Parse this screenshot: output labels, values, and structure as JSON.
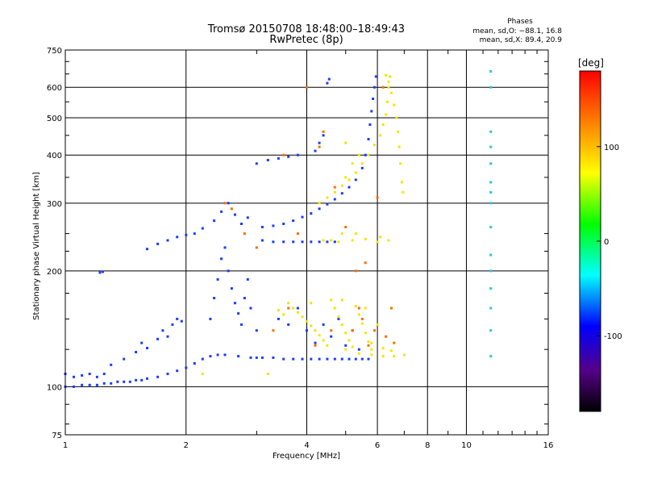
{
  "chart_data": {
    "type": "scatter",
    "title": "Tromsø 20150708 18:48:00–18:49:43",
    "subtitle": "RwPretec (8p)",
    "xlabel": "Frequency [MHz]",
    "ylabel": "Stationary phase Virtual Height [km]",
    "x_scale": "log",
    "y_scale": "log",
    "xlim": [
      1,
      16
    ],
    "ylim": [
      75,
      750
    ],
    "x_ticks": [
      1,
      2,
      4,
      6,
      8,
      10,
      16
    ],
    "y_ticks": [
      75,
      100,
      200,
      300,
      400,
      500,
      600,
      750
    ],
    "grid": true,
    "legend": {
      "title": "Phases",
      "lines": [
        "mean, sd,O: −88.1, 16.8",
        "mean, sd,X:  89.4, 20.9"
      ]
    },
    "colorbar": {
      "label": "[deg]",
      "range": [
        -180,
        180
      ],
      "ticks": [
        100,
        0,
        -100
      ]
    },
    "series": [
      {
        "values": [
          [
            1.0,
            100
          ],
          [
            1.05,
            100
          ],
          [
            1.1,
            101
          ],
          [
            1.15,
            101
          ],
          [
            1.2,
            101
          ],
          [
            1.25,
            102
          ],
          [
            1.3,
            102
          ],
          [
            1.35,
            103
          ],
          [
            1.4,
            103
          ],
          [
            1.45,
            103
          ],
          [
            1.5,
            104
          ],
          [
            1.55,
            104
          ],
          [
            1.6,
            105
          ],
          [
            1.7,
            106
          ],
          [
            1.8,
            108
          ],
          [
            1.9,
            110
          ],
          [
            2.0,
            112
          ],
          [
            2.1,
            115
          ],
          [
            2.2,
            118
          ],
          [
            2.3,
            120
          ],
          [
            2.4,
            121
          ],
          [
            2.5,
            121
          ],
          [
            2.7,
            120
          ],
          [
            2.9,
            119
          ],
          [
            3.0,
            119
          ],
          [
            3.1,
            119
          ],
          [
            3.3,
            119
          ],
          [
            3.5,
            118
          ],
          [
            3.7,
            118
          ],
          [
            3.9,
            118
          ],
          [
            4.1,
            118
          ],
          [
            4.3,
            118
          ],
          [
            4.5,
            118
          ],
          [
            4.7,
            118
          ],
          [
            4.9,
            118
          ],
          [
            5.1,
            118
          ],
          [
            5.3,
            118
          ],
          [
            5.5,
            118
          ],
          [
            5.7,
            118
          ],
          [
            1.0,
            108
          ],
          [
            1.05,
            106
          ],
          [
            1.1,
            107
          ],
          [
            1.15,
            108
          ],
          [
            1.2,
            106
          ],
          [
            1.25,
            108
          ],
          [
            1.3,
            114
          ],
          [
            1.4,
            118
          ],
          [
            1.5,
            123
          ],
          [
            1.55,
            130
          ],
          [
            1.6,
            126
          ],
          [
            1.7,
            133
          ],
          [
            1.75,
            140
          ],
          [
            1.8,
            135
          ],
          [
            1.85,
            145
          ],
          [
            1.9,
            150
          ],
          [
            1.95,
            148
          ],
          [
            1.22,
            198
          ],
          [
            1.24,
            199
          ],
          [
            1.6,
            228
          ],
          [
            1.7,
            235
          ],
          [
            1.8,
            240
          ],
          [
            1.9,
            245
          ],
          [
            2.0,
            248
          ],
          [
            2.1,
            250
          ],
          [
            2.2,
            258
          ],
          [
            2.3,
            150
          ],
          [
            2.35,
            170
          ],
          [
            2.4,
            190
          ],
          [
            2.45,
            215
          ],
          [
            2.5,
            230
          ],
          [
            2.55,
            200
          ],
          [
            2.6,
            180
          ],
          [
            2.65,
            165
          ],
          [
            2.7,
            155
          ],
          [
            2.75,
            145
          ],
          [
            2.8,
            170
          ],
          [
            2.85,
            190
          ],
          [
            2.9,
            160
          ],
          [
            3.0,
            140
          ],
          [
            2.35,
            270
          ],
          [
            2.45,
            285
          ],
          [
            2.55,
            300
          ],
          [
            2.65,
            280
          ],
          [
            2.75,
            265
          ],
          [
            2.85,
            275
          ],
          [
            3.1,
            240
          ],
          [
            3.3,
            238
          ],
          [
            3.5,
            238
          ],
          [
            3.7,
            238
          ],
          [
            3.9,
            238
          ],
          [
            4.1,
            238
          ],
          [
            4.3,
            238
          ],
          [
            4.5,
            238
          ],
          [
            4.7,
            238
          ],
          [
            3.1,
            260
          ],
          [
            3.3,
            262
          ],
          [
            3.5,
            265
          ],
          [
            3.7,
            270
          ],
          [
            3.9,
            276
          ],
          [
            4.1,
            282
          ],
          [
            4.3,
            290
          ],
          [
            4.5,
            298
          ],
          [
            4.7,
            307
          ],
          [
            4.9,
            318
          ],
          [
            5.1,
            330
          ],
          [
            5.3,
            345
          ],
          [
            5.5,
            370
          ],
          [
            5.6,
            400
          ],
          [
            5.7,
            440
          ],
          [
            5.75,
            480
          ],
          [
            5.8,
            520
          ],
          [
            5.85,
            560
          ],
          [
            5.9,
            600
          ],
          [
            5.95,
            640
          ],
          [
            3.0,
            380
          ],
          [
            3.2,
            388
          ],
          [
            3.4,
            392
          ],
          [
            3.6,
            396
          ],
          [
            3.8,
            400
          ],
          [
            4.2,
            410
          ],
          [
            4.3,
            430
          ],
          [
            4.4,
            450
          ],
          [
            4.5,
            615
          ],
          [
            4.55,
            630
          ],
          [
            3.4,
            150
          ],
          [
            3.6,
            145
          ],
          [
            3.8,
            160
          ],
          [
            4.0,
            140
          ],
          [
            4.2,
            130
          ],
          [
            4.4,
            145
          ],
          [
            4.6,
            135
          ],
          [
            4.8,
            150
          ],
          [
            5.0,
            128
          ],
          [
            5.2,
            140
          ],
          [
            5.4,
            125
          ]
        ]
      },
      {
        "values": [
          [
            3.6,
            165
          ],
          [
            3.7,
            160
          ],
          [
            3.8,
            156
          ],
          [
            3.9,
            152
          ],
          [
            4.0,
            148
          ],
          [
            4.1,
            144
          ],
          [
            4.2,
            140
          ],
          [
            4.3,
            136
          ],
          [
            4.4,
            132
          ],
          [
            4.5,
            128
          ],
          [
            4.6,
            168
          ],
          [
            4.7,
            160
          ],
          [
            4.8,
            152
          ],
          [
            4.9,
            145
          ],
          [
            5.0,
            138
          ],
          [
            5.1,
            132
          ],
          [
            5.2,
            127
          ],
          [
            5.3,
            162
          ],
          [
            5.4,
            154
          ],
          [
            5.5,
            146
          ],
          [
            5.6,
            138
          ],
          [
            5.7,
            131
          ],
          [
            5.8,
            125
          ],
          [
            5.0,
            125
          ],
          [
            5.4,
            122
          ],
          [
            5.8,
            121
          ],
          [
            6.2,
            120
          ],
          [
            6.6,
            120
          ],
          [
            7.0,
            121
          ],
          [
            4.3,
            300
          ],
          [
            4.5,
            310
          ],
          [
            4.7,
            320
          ],
          [
            4.9,
            333
          ],
          [
            5.1,
            345
          ],
          [
            5.3,
            360
          ],
          [
            5.5,
            380
          ],
          [
            5.7,
            400
          ],
          [
            5.9,
            425
          ],
          [
            6.1,
            450
          ],
          [
            6.2,
            480
          ],
          [
            6.3,
            510
          ],
          [
            6.35,
            550
          ],
          [
            6.4,
            600
          ],
          [
            6.45,
            640
          ],
          [
            4.4,
            240
          ],
          [
            4.8,
            238
          ],
          [
            5.2,
            240
          ],
          [
            5.6,
            242
          ],
          [
            6.0,
            238
          ],
          [
            6.4,
            240
          ],
          [
            6.3,
            645
          ],
          [
            6.4,
            620
          ],
          [
            6.5,
            580
          ],
          [
            6.6,
            540
          ],
          [
            6.7,
            500
          ],
          [
            6.75,
            460
          ],
          [
            6.8,
            420
          ],
          [
            6.85,
            380
          ],
          [
            6.9,
            340
          ],
          [
            6.95,
            320
          ],
          [
            3.4,
            158
          ],
          [
            3.5,
            154
          ],
          [
            4.1,
            165
          ],
          [
            4.9,
            168
          ],
          [
            5.6,
            160
          ],
          [
            6.0,
            145
          ],
          [
            5.0,
            350
          ],
          [
            5.2,
            380
          ],
          [
            5.4,
            400
          ],
          [
            5.0,
            430
          ],
          [
            2.2,
            108
          ],
          [
            3.2,
            108
          ],
          [
            4.6,
            240
          ],
          [
            4.9,
            250
          ],
          [
            5.3,
            250
          ],
          [
            6.1,
            245
          ],
          [
            5.8,
            130
          ],
          [
            6.2,
            126
          ],
          [
            6.5,
            124
          ]
        ]
      },
      {
        "values": [
          [
            2.5,
            300
          ],
          [
            2.6,
            290
          ],
          [
            3.5,
            400
          ],
          [
            4.3,
            420
          ],
          [
            4.6,
            140
          ],
          [
            5.0,
            260
          ],
          [
            5.2,
            140
          ],
          [
            5.5,
            150
          ],
          [
            5.9,
            140
          ],
          [
            6.3,
            135
          ],
          [
            6.6,
            130
          ],
          [
            3.6,
            160
          ],
          [
            3.0,
            230
          ],
          [
            3.8,
            250
          ],
          [
            6.0,
            310
          ],
          [
            4.7,
            330
          ],
          [
            5.3,
            200
          ],
          [
            5.6,
            210
          ],
          [
            6.2,
            600
          ],
          [
            5.4,
            160
          ],
          [
            4.2,
            128
          ],
          [
            3.3,
            140
          ],
          [
            2.8,
            250
          ],
          [
            4.0,
            600
          ],
          [
            4.4,
            460
          ],
          [
            5.7,
            128
          ],
          [
            6.5,
            160
          ]
        ]
      },
      {
        "values": [
          [
            11.5,
            660
          ],
          [
            11.5,
            600
          ],
          [
            11.5,
            460
          ],
          [
            11.5,
            420
          ],
          [
            11.5,
            380
          ],
          [
            11.5,
            340
          ],
          [
            11.5,
            320
          ],
          [
            11.5,
            300
          ],
          [
            11.5,
            260
          ],
          [
            11.5,
            220
          ],
          [
            11.5,
            200
          ],
          [
            11.5,
            180
          ],
          [
            11.5,
            160
          ],
          [
            11.5,
            140
          ],
          [
            11.5,
            120
          ]
        ]
      }
    ]
  }
}
